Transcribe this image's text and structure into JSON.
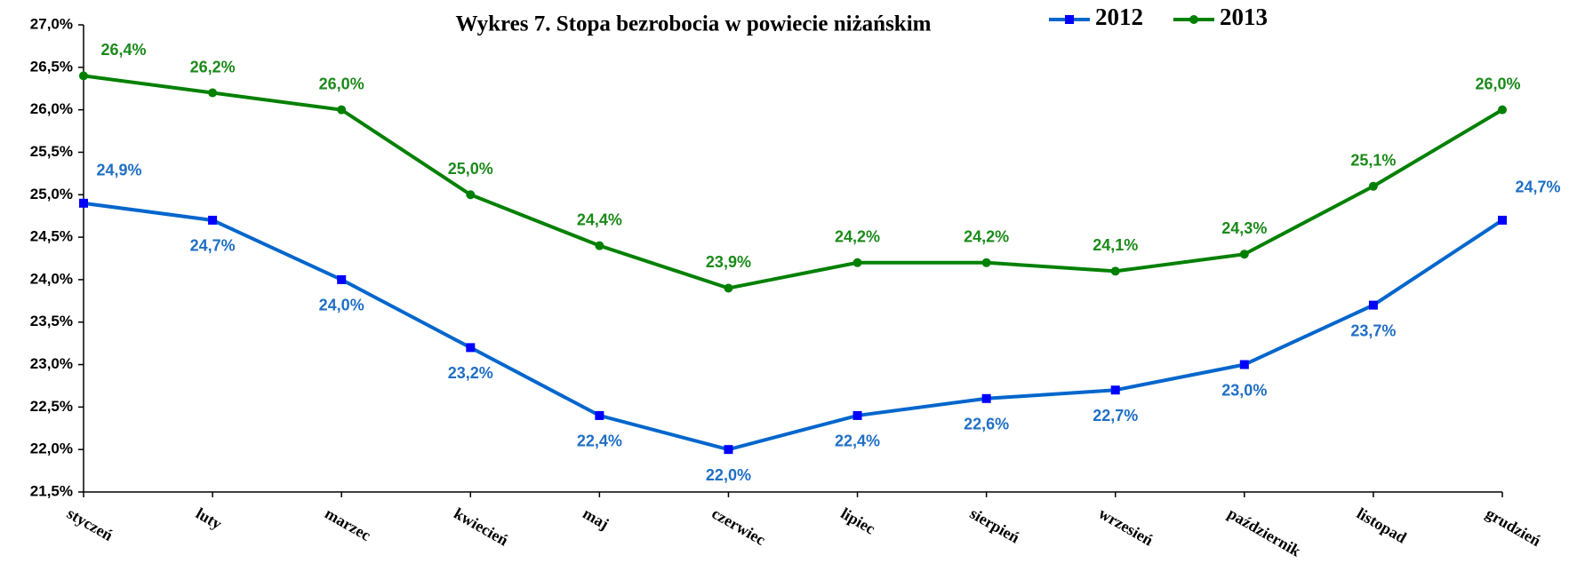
{
  "chart_data": {
    "type": "line",
    "title": "Wykres 7. Stopa bezrobocia w powiecie niżańskim",
    "categories": [
      "styczeń",
      "luty",
      "marzec",
      "kwiecień",
      "maj",
      "czerwiec",
      "lipiec",
      "sierpień",
      "wrzesień",
      "październik",
      "listopad",
      "grudzień"
    ],
    "series": [
      {
        "name": "2012",
        "color": "#0066cc",
        "marker_color": "#0000ff",
        "label_color": "#1f6fc4",
        "marker": "square",
        "values": [
          24.9,
          24.7,
          24.0,
          23.2,
          22.4,
          22.0,
          22.4,
          22.6,
          22.7,
          23.0,
          23.7,
          24.7
        ],
        "value_labels": [
          "24,9%",
          "24,7%",
          "24,0%",
          "23,2%",
          "22,4%",
          "22,0%",
          "22,4%",
          "22,6%",
          "22,7%",
          "23,0%",
          "23,7%",
          "24,7%"
        ]
      },
      {
        "name": "2013",
        "color": "#008000",
        "marker_color": "#008000",
        "label_color": "#1a8a1a",
        "marker": "circle",
        "values": [
          26.4,
          26.2,
          26.0,
          25.0,
          24.4,
          23.9,
          24.2,
          24.2,
          24.1,
          24.3,
          25.1,
          26.0
        ],
        "value_labels": [
          "26,4%",
          "26,2%",
          "26,0%",
          "25,0%",
          "24,4%",
          "23,9%",
          "24,2%",
          "24,2%",
          "24,1%",
          "24,3%",
          "25,1%",
          "26,0%"
        ]
      }
    ],
    "ylim": [
      21.5,
      27.0
    ],
    "yticks": [
      {
        "value": 21.5,
        "label": "21,5%"
      },
      {
        "value": 22.0,
        "label": "22,0%"
      },
      {
        "value": 22.5,
        "label": "22,5%"
      },
      {
        "value": 23.0,
        "label": "23,0%"
      },
      {
        "value": 23.5,
        "label": "23,5%"
      },
      {
        "value": 24.0,
        "label": "24,0%"
      },
      {
        "value": 24.5,
        "label": "24,5%"
      },
      {
        "value": 25.0,
        "label": "25,0%"
      },
      {
        "value": 25.5,
        "label": "25,5%"
      },
      {
        "value": 26.0,
        "label": "26,0%"
      },
      {
        "value": 26.5,
        "label": "26,5%"
      },
      {
        "value": 27.0,
        "label": "27,0%"
      }
    ],
    "grid": false,
    "legend": "top"
  }
}
